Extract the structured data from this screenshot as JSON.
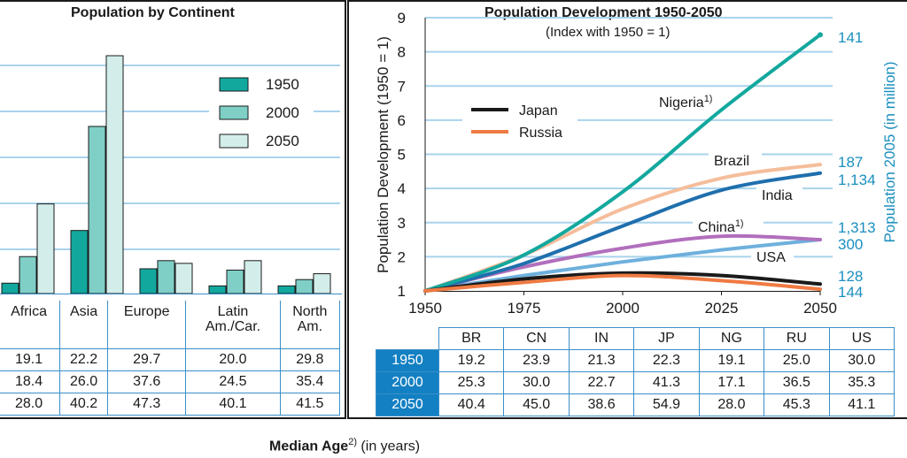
{
  "left_chart": {
    "title": "Population by Continent",
    "legend": [
      "1950",
      "2000",
      "2050"
    ],
    "colors": [
      "#13a89e",
      "#7fcfc7",
      "#d3eeea"
    ]
  },
  "right_chart": {
    "title": "Population Development 1950-2050",
    "subtitle": "(Index with 1950 = 1)",
    "ylabel": "Population Development (1950 = 1)",
    "y2label": "Population 2005 (in million)"
  },
  "chart_data": [
    {
      "type": "bar",
      "title": "Population by Continent",
      "categories": [
        "Africa",
        "Asia",
        "Europe",
        "Latin Am./Car.",
        "North Am."
      ],
      "category_lines": [
        [
          "Africa"
        ],
        [
          "Asia"
        ],
        [
          "Europe"
        ],
        [
          "Latin",
          "Am./Car."
        ],
        [
          "North",
          "Am."
        ]
      ],
      "series": [
        {
          "name": "1950",
          "values": [
            0.23,
            1.4,
            0.55,
            0.17,
            0.17
          ]
        },
        {
          "name": "2000",
          "values": [
            0.82,
            3.71,
            0.73,
            0.52,
            0.31
          ]
        },
        {
          "name": "2050",
          "values": [
            1.99,
            5.28,
            0.67,
            0.73,
            0.44
          ]
        }
      ],
      "ylim": [
        0,
        5.3
      ],
      "grid": true,
      "legend": "top-right"
    },
    {
      "type": "line",
      "title": "Population Development 1950-2050",
      "subtitle": "(Index with 1950 = 1)",
      "xlabel": "",
      "ylabel": "Population Development (1950 = 1)",
      "y2label": "Population 2005 (in million)",
      "x": [
        1950,
        1975,
        2000,
        2025,
        2050
      ],
      "xticks": [
        "1950",
        "1975",
        "2000",
        "2025",
        "2050"
      ],
      "yticks": [
        "1",
        "2",
        "3",
        "4",
        "5",
        "6",
        "7",
        "8",
        "9"
      ],
      "ylim": [
        1,
        9
      ],
      "xlim": [
        1950,
        2050
      ],
      "grid": true,
      "series": [
        {
          "name": "Nigeria",
          "label": "Nigeria",
          "sup": "1)",
          "color": "#13a89e",
          "pop2005": "141",
          "values": [
            1.0,
            2.05,
            3.9,
            6.3,
            8.5
          ]
        },
        {
          "name": "Brazil",
          "label": "Brazil",
          "sup": "",
          "color": "#f5bd9b",
          "pop2005": "187",
          "values": [
            1.0,
            2.05,
            3.4,
            4.3,
            4.7
          ]
        },
        {
          "name": "India",
          "label": "India",
          "sup": "",
          "color": "#1f6fad",
          "pop2005": "1,134",
          "values": [
            1.0,
            1.8,
            2.9,
            3.95,
            4.45
          ]
        },
        {
          "name": "China",
          "label": "China",
          "sup": "1)",
          "color": "#b16fbd",
          "pop2005": "1,313",
          "values": [
            1.0,
            1.7,
            2.25,
            2.6,
            2.5
          ]
        },
        {
          "name": "USA",
          "label": "USA",
          "sup": "",
          "color": "#6eb0dd",
          "pop2005": "300",
          "values": [
            1.0,
            1.45,
            1.85,
            2.2,
            2.5
          ]
        },
        {
          "name": "Japan",
          "label": "Japan",
          "sup": "",
          "color": "#1a1a1a",
          "pop2005": "128",
          "values": [
            1.0,
            1.35,
            1.52,
            1.45,
            1.2
          ]
        },
        {
          "name": "Russia",
          "label": "Russia",
          "sup": "",
          "color": "#ef7a43",
          "pop2005": "144",
          "values": [
            1.0,
            1.25,
            1.45,
            1.3,
            1.05
          ]
        }
      ],
      "legend_entries": [
        "Japan",
        "Russia"
      ]
    }
  ],
  "left_table": {
    "rows": [
      [
        "19.1",
        "22.2",
        "29.7",
        "20.0",
        "29.8"
      ],
      [
        "18.4",
        "26.0",
        "37.6",
        "24.5",
        "35.4"
      ],
      [
        "28.0",
        "40.2",
        "47.3",
        "40.1",
        "41.5"
      ]
    ]
  },
  "right_table": {
    "headers": [
      "BR",
      "CN",
      "IN",
      "JP",
      "NG",
      "RU",
      "US"
    ],
    "rows": [
      {
        "label": "1950",
        "values": [
          "19.2",
          "23.9",
          "21.3",
          "22.3",
          "19.1",
          "25.0",
          "30.0"
        ]
      },
      {
        "label": "2000",
        "values": [
          "25.3",
          "30.0",
          "22.7",
          "41.3",
          "17.1",
          "36.5",
          "35.3"
        ]
      },
      {
        "label": "2050",
        "values": [
          "40.4",
          "45.0",
          "38.6",
          "54.9",
          "28.0",
          "45.3",
          "41.1"
        ]
      }
    ]
  },
  "footnote": {
    "bold": "Median Age",
    "sup": "2)",
    "rest": " (in years)"
  }
}
